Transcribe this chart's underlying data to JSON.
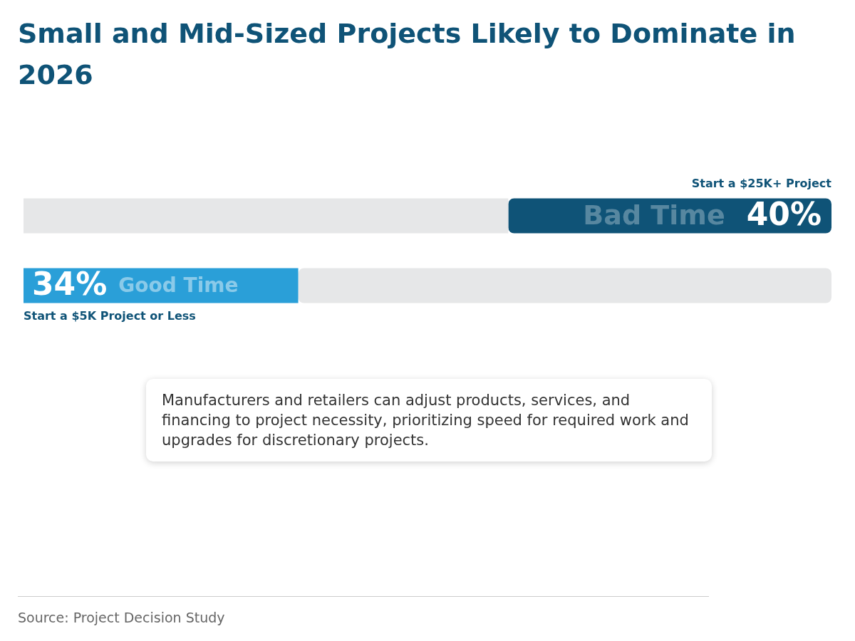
{
  "chart_data": {
    "type": "bar",
    "orientation": "horizontal",
    "stacked": true,
    "title": "Small and Mid-Sized Projects Likely to Dominate in 2026",
    "categories": [
      "Start a $25K+ Project",
      "Start a $5K Project or Less"
    ],
    "series": [
      {
        "values": [
          60,
          34
        ],
        "colors": [
          "#e6e7e8",
          "#2a9fd8"
        ],
        "value_labels": [
          null,
          "34%"
        ]
      },
      {
        "values": [
          40,
          66
        ],
        "colors": [
          "#0f5377",
          "#e6e7e8"
        ],
        "value_labels": [
          "40%",
          null
        ]
      }
    ],
    "xlim": [
      0,
      100
    ],
    "tick_labels": false,
    "grid": false,
    "legend": false,
    "annotations": [
      "Bad Time",
      "Good Time",
      "Manufacturers and retailers can adjust products, services, and financing to project necessity, prioritizing speed for required work and upgrades for discretionary projects.",
      "Source: Project Decision Study"
    ]
  }
}
